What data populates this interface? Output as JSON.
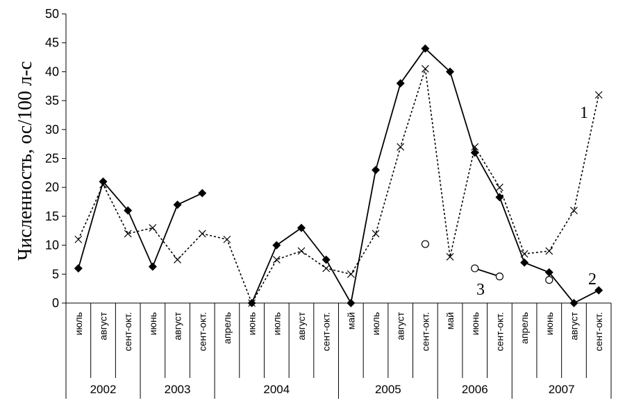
{
  "chart_data": {
    "type": "line",
    "ylabel": "Численность, ос/100 л-с",
    "xlabel": "",
    "ylim": [
      0,
      50
    ],
    "yticks": [
      0,
      5,
      10,
      15,
      20,
      25,
      30,
      35,
      40,
      45,
      50
    ],
    "grid": false,
    "categories": [
      "июль",
      "август",
      "сент-окт.",
      "июнь",
      "август",
      "сент-окт.",
      "апрель",
      "июнь",
      "июль",
      "август",
      "сент-окт.",
      "май",
      "июль",
      "август",
      "сент-окт.",
      "май",
      "июнь",
      "сент-окт.",
      "апрель",
      "июнь",
      "август",
      "сент-окт."
    ],
    "groups": [
      {
        "label": "2002",
        "span": 3
      },
      {
        "label": "2003",
        "span": 3
      },
      {
        "label": "2004",
        "span": 5
      },
      {
        "label": "2005",
        "span": 4
      },
      {
        "label": "2006",
        "span": 3
      },
      {
        "label": "2007",
        "span": 4
      }
    ],
    "series": [
      {
        "name": "1",
        "style": "dotted",
        "marker": "x",
        "values": [
          11,
          20.5,
          12,
          13,
          7.5,
          12,
          11,
          0,
          7.5,
          9,
          6,
          5,
          12,
          27,
          40.5,
          8,
          27,
          20,
          8.5,
          9,
          16,
          36
        ]
      },
      {
        "name": "2",
        "style": "solid",
        "marker": "diamond",
        "values": [
          6,
          21,
          16,
          6.3,
          17,
          19,
          null,
          0,
          10,
          13,
          7.5,
          0,
          23,
          38,
          44,
          40,
          26,
          18.3,
          7,
          5.3,
          0,
          2.2
        ]
      },
      {
        "name": "3",
        "style": "solid",
        "marker": "circle",
        "values": [
          null,
          null,
          null,
          null,
          null,
          null,
          null,
          null,
          null,
          null,
          null,
          null,
          null,
          null,
          10.2,
          null,
          6,
          4.6,
          null,
          4,
          null,
          null
        ]
      }
    ],
    "annotations": [
      {
        "text": "1",
        "series": "1"
      },
      {
        "text": "2",
        "series": "2"
      },
      {
        "text": "3",
        "series": "3"
      }
    ]
  }
}
